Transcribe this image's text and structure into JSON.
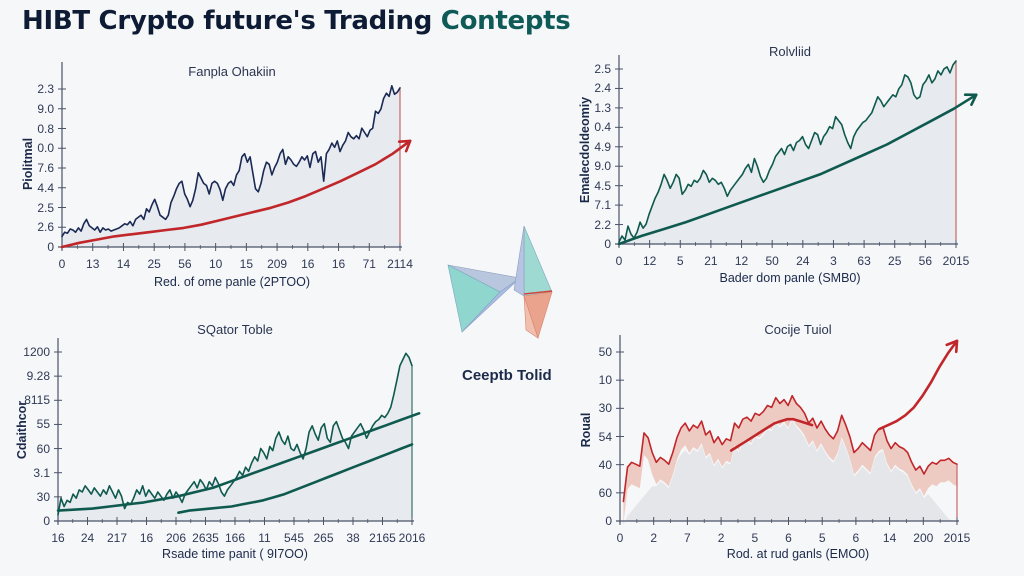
{
  "header": {
    "title_main": "HIBT Crypto future's Trading ",
    "title_accent": "Contepts"
  },
  "center": {
    "label": "Ceeptb Tolid",
    "icon": "crystal-arrow-logo-icon"
  },
  "colors": {
    "navy": "#1b2a55",
    "teal": "#0f5a4e",
    "red": "#c0262a",
    "fill": "#e6e8ec",
    "red_fill": "#ecc3b8",
    "axis": "#4a5368",
    "bg": "#f6f7f9"
  },
  "chart_data": [
    {
      "id": "top-left",
      "type": "line",
      "title": "Fanpla Ohakiin",
      "xlabel": "Red. of ome panle (2PTOO)",
      "ylabel": "Piolitmal",
      "x_ticks": [
        "0",
        "13",
        "14",
        "25",
        "56",
        "10",
        "15",
        "209",
        "16",
        "16",
        "71",
        "2114"
      ],
      "y_ticks": [
        "0",
        "2.6",
        "2.5",
        "4.4",
        "7.6",
        "0.0",
        "0.8",
        "9.0",
        "2.3"
      ],
      "grid": false,
      "series": [
        {
          "name": "price",
          "color": "#1b2a55",
          "values": [
            10,
            14,
            13,
            17,
            16,
            14,
            18,
            15,
            22,
            26,
            20,
            18,
            16,
            19,
            14,
            18,
            16,
            17,
            15,
            16,
            17,
            18,
            20,
            22,
            21,
            24,
            20,
            26,
            28,
            30,
            26,
            36,
            33,
            40,
            45,
            38,
            30,
            28,
            26,
            30,
            42,
            48,
            55,
            60,
            62,
            50,
            45,
            38,
            44,
            55,
            70,
            65,
            60,
            58,
            50,
            60,
            62,
            60,
            54,
            44,
            55,
            60,
            62,
            58,
            68,
            72,
            85,
            88,
            80,
            85,
            70,
            55,
            52,
            60,
            72,
            80,
            78,
            68,
            75,
            80,
            88,
            92,
            78,
            85,
            82,
            78,
            76,
            80,
            85,
            82,
            86,
            75,
            88,
            90,
            80,
            85,
            62,
            88,
            92,
            98,
            94,
            100,
            90,
            96,
            100,
            108,
            104,
            102,
            105,
            102,
            112,
            108,
            104,
            110,
            112,
            128,
            126,
            130,
            140,
            145,
            142,
            152,
            144,
            146,
            150
          ]
        },
        {
          "name": "trend",
          "color": "#c0262a",
          "arrow": true,
          "values": [
            0,
            4,
            7,
            10,
            12,
            14,
            16,
            18,
            21,
            25,
            29,
            33,
            37,
            42,
            48,
            55,
            62,
            70,
            78,
            88,
            100
          ]
        }
      ],
      "ylim": [
        0,
        165
      ]
    },
    {
      "id": "top-right",
      "type": "line",
      "title": "Rolvliid",
      "xlabel": "Bader dom panle (SMB0)",
      "ylabel": "Emalecdoldeomiy",
      "x_ticks": [
        "0",
        "12",
        "5",
        "21",
        "12",
        "50",
        "24",
        "3",
        "63",
        "25",
        "56",
        "2015"
      ],
      "y_ticks": [
        "0",
        "2.2",
        "7.1",
        "4.5",
        "9.0",
        "4.9",
        "0.4",
        "1.3",
        "2.4",
        "2.5"
      ],
      "grid": false,
      "series": [
        {
          "name": "price",
          "color": "#0f5a4e",
          "values": [
            2,
            8,
            4,
            18,
            10,
            6,
            12,
            22,
            16,
            20,
            30,
            38,
            46,
            52,
            60,
            70,
            64,
            56,
            62,
            70,
            66,
            50,
            54,
            60,
            58,
            64,
            62,
            66,
            74,
            70,
            62,
            66,
            64,
            60,
            62,
            56,
            48,
            54,
            58,
            62,
            66,
            70,
            76,
            80,
            72,
            86,
            78,
            68,
            62,
            66,
            74,
            80,
            88,
            92,
            96,
            90,
            98,
            100,
            94,
            102,
            104,
            108,
            100,
            96,
            104,
            112,
            110,
            100,
            108,
            112,
            118,
            116,
            128,
            124,
            120,
            110,
            102,
            96,
            108,
            114,
            118,
            122,
            124,
            128,
            132,
            140,
            148,
            144,
            138,
            142,
            146,
            150,
            148,
            156,
            160,
            170,
            168,
            162,
            150,
            146,
            148,
            160,
            164,
            170,
            162,
            166,
            174,
            170,
            176,
            178,
            172,
            180,
            184
          ]
        },
        {
          "name": "trend",
          "color": "#0f5a4e",
          "arrow": true,
          "values": [
            0,
            8,
            15,
            22,
            30,
            38,
            46,
            54,
            62,
            70,
            80,
            90,
            100,
            112,
            124,
            136,
            150
          ]
        }
      ],
      "ylim": [
        0,
        190
      ]
    },
    {
      "id": "bottom-left",
      "type": "line",
      "title": "SQator Toble",
      "xlabel": "Rsade time panit ( 9I7OO)",
      "ylabel": "Cdaithcor",
      "x_ticks": [
        "16",
        "24",
        "217",
        "16",
        "206",
        "2635",
        "166",
        "11",
        "545",
        "265",
        "38",
        "2165",
        "2016"
      ],
      "y_ticks": [
        "0",
        "30",
        "3.1",
        "60",
        "55",
        "8115",
        "9.28",
        "1200"
      ],
      "grid": false,
      "series": [
        {
          "name": "price",
          "color": "#0f5a4e",
          "values": [
            6,
            22,
            14,
            20,
            18,
            26,
            22,
            30,
            28,
            34,
            30,
            26,
            32,
            28,
            24,
            30,
            26,
            34,
            28,
            22,
            30,
            24,
            12,
            18,
            16,
            22,
            30,
            26,
            34,
            24,
            30,
            26,
            22,
            28,
            24,
            20,
            26,
            30,
            22,
            28,
            24,
            18,
            26,
            30,
            34,
            38,
            32,
            40,
            36,
            30,
            38,
            34,
            42,
            36,
            28,
            24,
            30,
            34,
            38,
            42,
            48,
            44,
            52,
            48,
            56,
            62,
            58,
            70,
            66,
            60,
            72,
            68,
            80,
            86,
            78,
            74,
            82,
            70,
            68,
            74,
            66,
            60,
            70,
            86,
            92,
            84,
            78,
            90,
            94,
            80,
            76,
            92,
            96,
            88,
            80,
            76,
            70,
            82,
            86,
            90,
            94,
            88,
            80,
            86,
            92,
            96,
            98,
            102,
            100,
            104,
            110,
            122,
            136,
            150,
            156,
            162,
            158,
            150
          ]
        },
        {
          "name": "trend_upper",
          "color": "#0f5a4e",
          "values": [
            10,
            11,
            12,
            14,
            16,
            18,
            21,
            24,
            28,
            32,
            38,
            44,
            50,
            56,
            62,
            68,
            74,
            80,
            86,
            92,
            98,
            104
          ]
        },
        {
          "name": "trend_lower",
          "color": "#0f5a4e",
          "values": [
            8,
            10,
            11,
            12,
            13,
            14,
            16,
            18,
            20,
            23,
            26,
            30,
            34,
            38,
            42,
            46,
            50,
            54,
            58,
            62,
            66,
            70,
            74
          ]
        }
      ],
      "ylim": [
        0,
        170
      ]
    },
    {
      "id": "bottom-right",
      "type": "area",
      "title": "Cocije Tuiol",
      "xlabel": "Rod. at rud ganls (EMO0)",
      "ylabel": "Roual",
      "x_ticks": [
        "0",
        "2",
        "7",
        "2",
        "5",
        "6",
        "5",
        "6",
        "14",
        "200",
        "2015"
      ],
      "y_ticks": [
        "0",
        "60",
        "40",
        "54",
        "30",
        "10",
        "50"
      ],
      "grid": false,
      "series": [
        {
          "name": "price",
          "color": "#c0262a",
          "values": [
            20,
            55,
            60,
            58,
            56,
            90,
            85,
            70,
            60,
            65,
            62,
            58,
            70,
            85,
            95,
            100,
            92,
            98,
            95,
            102,
            88,
            92,
            80,
            86,
            78,
            84,
            82,
            100,
            95,
            104,
            106,
            102,
            110,
            108,
            112,
            118,
            116,
            126,
            120,
            124,
            118,
            128,
            120,
            116,
            110,
            100,
            105,
            95,
            102,
            94,
            88,
            84,
            92,
            108,
            98,
            86,
            70,
            74,
            80,
            76,
            72,
            88,
            94,
            96,
            82,
            74,
            80,
            76,
            74,
            70,
            60,
            52,
            56,
            48,
            56,
            60,
            58,
            62,
            62,
            64,
            60,
            58
          ]
        },
        {
          "name": "trend",
          "color": "#c0262a",
          "values": [
            72,
            76,
            80,
            84,
            88,
            92,
            96,
            100,
            102,
            104,
            104,
            102,
            100,
            98
          ]
        },
        {
          "name": "breakout",
          "color": "#c0262a",
          "arrow": true,
          "values": [
            94,
            98,
            102,
            108,
            116,
            128,
            142,
            158,
            172,
            184
          ]
        }
      ],
      "ylim": [
        0,
        190
      ]
    }
  ]
}
